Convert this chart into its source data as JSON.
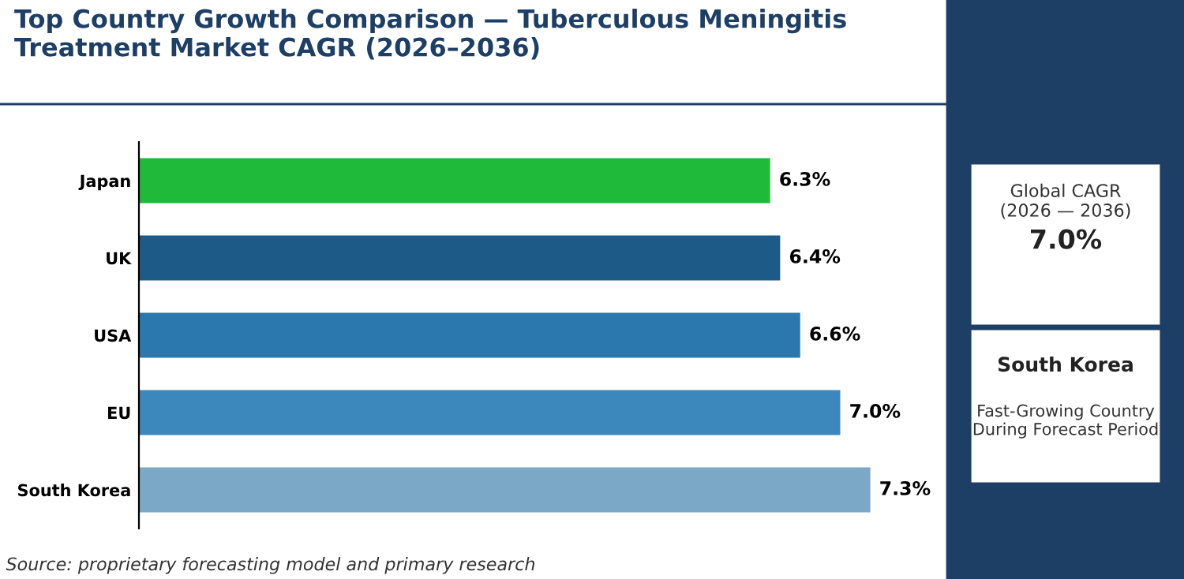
{
  "chart_data": {
    "type": "bar",
    "orientation": "horizontal",
    "title": "Top Country Growth Comparison — Tuberculous Meningitis Treatment Market CAGR (2026–2036)",
    "categories": [
      "Japan",
      "UK",
      "USA",
      "EU",
      "South Korea"
    ],
    "values": [
      6.3,
      6.4,
      6.6,
      7.0,
      7.3
    ],
    "colors": [
      "#1fba3a",
      "#1d5a87",
      "#2b78ae",
      "#3c88bc",
      "#7ba8c6"
    ],
    "value_labels": [
      "6.3%",
      "6.4%",
      "6.6%",
      "7.0%",
      "7.3%"
    ],
    "tick_labels": "y",
    "grid": false,
    "legend": false,
    "annotations": [
      "Source: proprietary forecasting model and primary research",
      "Global CAGR\n(2026 — 2036)",
      "7.0%",
      "South Korea",
      "Fast-Growing Country\nDuring Forecast Period"
    ]
  }
}
